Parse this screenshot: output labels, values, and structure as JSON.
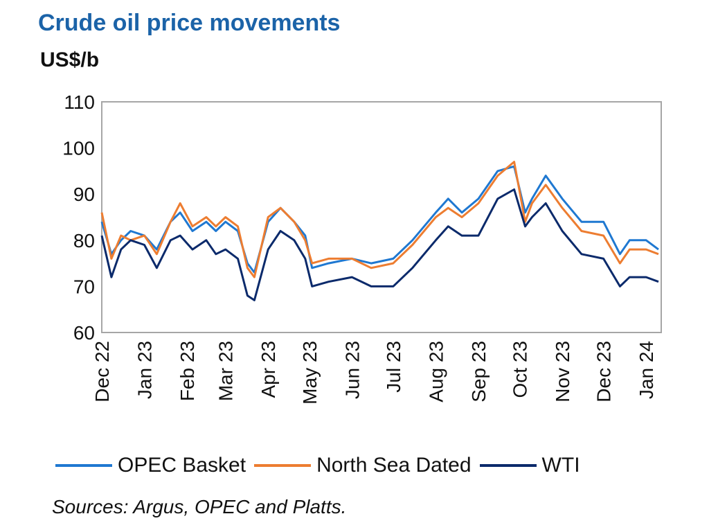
{
  "chart_data": {
    "type": "line",
    "title": "Crude oil price movements",
    "ylabel": "US$/b",
    "ylim": [
      60,
      110
    ],
    "yticks": [
      60,
      70,
      80,
      90,
      100,
      110
    ],
    "xlim": [
      "2022-12-01",
      "2024-01-12"
    ],
    "xtick_labels": [
      "Dec 22",
      "Jan 23",
      "Feb 23",
      "Mar 23",
      "Apr 23",
      "May 23",
      "Jun 23",
      "Jul 23",
      "Aug 23",
      "Sep 23",
      "Oct 23",
      "Nov 23",
      "Dec 23",
      "Jan 24"
    ],
    "xtick_dates": [
      "2022-12-01",
      "2023-01-01",
      "2023-02-01",
      "2023-03-01",
      "2023-04-01",
      "2023-05-01",
      "2023-06-01",
      "2023-07-01",
      "2023-08-01",
      "2023-09-01",
      "2023-10-01",
      "2023-11-01",
      "2023-12-01",
      "2024-01-01"
    ],
    "grid": false,
    "legend_placement": "bottom",
    "x": [
      "2022-12-01",
      "2022-12-08",
      "2022-12-15",
      "2022-12-22",
      "2023-01-01",
      "2023-01-10",
      "2023-01-20",
      "2023-01-27",
      "2023-02-05",
      "2023-02-15",
      "2023-02-22",
      "2023-03-01",
      "2023-03-10",
      "2023-03-17",
      "2023-03-22",
      "2023-04-01",
      "2023-04-10",
      "2023-04-20",
      "2023-04-28",
      "2023-05-03",
      "2023-05-15",
      "2023-06-01",
      "2023-06-15",
      "2023-07-01",
      "2023-07-15",
      "2023-08-01",
      "2023-08-10",
      "2023-08-20",
      "2023-09-01",
      "2023-09-15",
      "2023-09-27",
      "2023-10-05",
      "2023-10-10",
      "2023-10-20",
      "2023-11-01",
      "2023-11-15",
      "2023-12-01",
      "2023-12-13",
      "2023-12-20",
      "2024-01-01",
      "2024-01-10"
    ],
    "series": [
      {
        "name": "OPEC Basket",
        "color": "#1f78d1",
        "values": [
          84,
          77,
          80,
          82,
          81,
          78,
          84,
          86,
          82,
          84,
          82,
          84,
          82,
          75,
          73,
          84,
          87,
          84,
          81,
          74,
          75,
          76,
          75,
          76,
          80,
          86,
          89,
          86,
          89,
          95,
          96,
          86,
          89,
          94,
          89,
          84,
          84,
          77,
          80,
          80,
          78
        ]
      },
      {
        "name": "North Sea Dated",
        "color": "#ed7d31",
        "values": [
          86,
          76,
          81,
          80,
          81,
          77,
          84,
          88,
          83,
          85,
          83,
          85,
          83,
          74,
          72,
          85,
          87,
          84,
          80,
          75,
          76,
          76,
          74,
          75,
          79,
          85,
          87,
          85,
          88,
          94,
          97,
          84,
          88,
          92,
          87,
          82,
          81,
          75,
          78,
          78,
          77
        ]
      },
      {
        "name": "WTI",
        "color": "#0b2a6b",
        "values": [
          81,
          72,
          78,
          80,
          79,
          74,
          80,
          81,
          78,
          80,
          77,
          78,
          76,
          68,
          67,
          78,
          82,
          80,
          76,
          70,
          71,
          72,
          70,
          70,
          74,
          80,
          83,
          81,
          81,
          89,
          91,
          83,
          85,
          88,
          82,
          77,
          76,
          70,
          72,
          72,
          71
        ]
      }
    ]
  },
  "source": "Sources: Argus, OPEC and Platts."
}
